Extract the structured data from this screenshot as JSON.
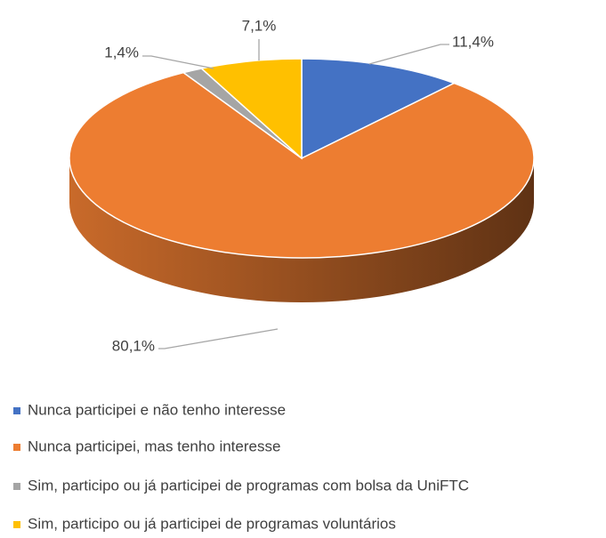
{
  "chart_data": {
    "type": "pie",
    "categories": [
      "Nunca participei e não tenho interesse",
      "Nunca participei, mas tenho interesse",
      "Sim, participo ou já participei de programas com bolsa da UniFTC",
      "Sim, participo ou já participei de programas voluntários"
    ],
    "values": [
      11.4,
      80.1,
      1.4,
      7.1
    ],
    "value_labels": [
      "11,4%",
      "80,1%",
      "1,4%",
      "7,1%"
    ],
    "colors": [
      "#4472c4",
      "#ed7d31",
      "#a5a5a5",
      "#ffc000"
    ]
  }
}
